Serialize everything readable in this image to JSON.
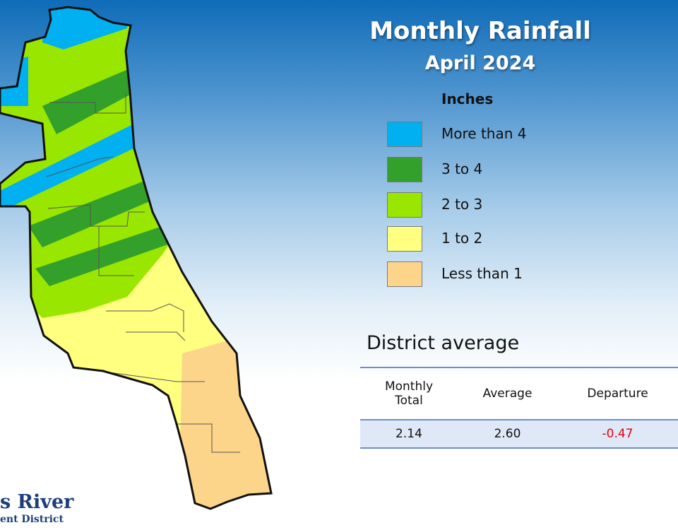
{
  "map": {
    "title": "Monthly Rainfall",
    "subtitle": "April 2024"
  },
  "legend": {
    "title": "Inches",
    "items": [
      {
        "label": "More than 4",
        "color": "#00b0f0"
      },
      {
        "label": "3 to 4",
        "color": "#33a02c"
      },
      {
        "label": "2 to 3",
        "color": "#99e600"
      },
      {
        "label": "1 to 2",
        "color": "#ffff80"
      },
      {
        "label": "Less than 1",
        "color": "#fdd58a"
      }
    ]
  },
  "district_average": {
    "heading": "District average",
    "columns": [
      "Monthly\nTotal",
      "Average",
      "Departure"
    ],
    "values": {
      "monthly_total": "2.14",
      "average": "2.60",
      "departure": "-0.47"
    },
    "departure_color": "#e60012"
  },
  "logo": {
    "line1": "s River",
    "line2": "ent District"
  }
}
